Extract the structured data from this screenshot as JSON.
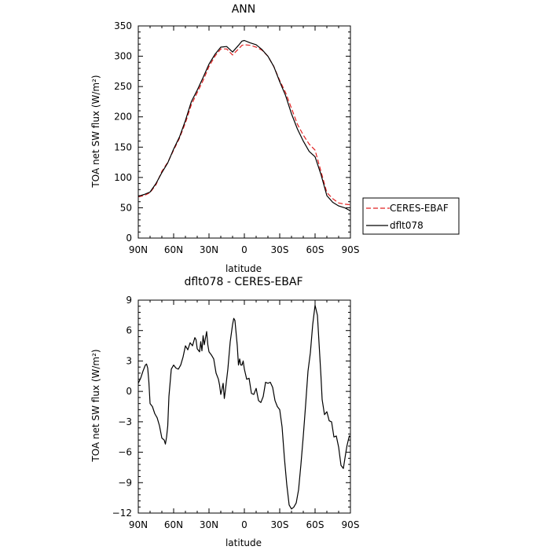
{
  "chart_data": [
    {
      "type": "line",
      "title": "ANN",
      "xlabel": "latitude",
      "ylabel": "TOA net SW flux (W/m²)",
      "xlim": [
        90,
        -90
      ],
      "ylim": [
        0,
        350
      ],
      "yticks": [
        0,
        50,
        100,
        150,
        200,
        250,
        300,
        350
      ],
      "xticks": [
        {
          "value": 90,
          "label": "90N"
        },
        {
          "value": 60,
          "label": "60N"
        },
        {
          "value": 30,
          "label": "30N"
        },
        {
          "value": 0,
          "label": "0"
        },
        {
          "value": -30,
          "label": "30S"
        },
        {
          "value": -60,
          "label": "60S"
        },
        {
          "value": -90,
          "label": "90S"
        }
      ],
      "legend_position": "outside-right",
      "series": [
        {
          "name": "CERES-EBAF",
          "color": "#e02020",
          "style": "dashed",
          "x": [
            90,
            85,
            80,
            75,
            70,
            65,
            60,
            55,
            50,
            45,
            40,
            35,
            30,
            25,
            20,
            15,
            10,
            5,
            2,
            0,
            -5,
            -10,
            -15,
            -20,
            -25,
            -30,
            -35,
            -40,
            -45,
            -50,
            -55,
            -60,
            -65,
            -70,
            -75,
            -80,
            -85,
            -90
          ],
          "y": [
            68,
            70,
            75,
            88,
            110,
            125,
            145,
            165,
            190,
            220,
            240,
            260,
            283,
            300,
            312,
            312,
            302,
            312,
            318,
            319,
            318,
            315,
            310,
            300,
            283,
            260,
            240,
            214,
            188,
            170,
            155,
            145,
            110,
            75,
            65,
            58,
            56,
            55
          ]
        },
        {
          "name": "dflt078",
          "color": "#000000",
          "style": "solid",
          "x": [
            90,
            85,
            80,
            75,
            70,
            65,
            60,
            55,
            50,
            45,
            40,
            35,
            30,
            25,
            20,
            15,
            10,
            5,
            2,
            0,
            -5,
            -10,
            -15,
            -20,
            -25,
            -30,
            -35,
            -40,
            -45,
            -50,
            -55,
            -60,
            -65,
            -70,
            -75,
            -80,
            -85,
            -90
          ],
          "y": [
            69,
            72,
            76,
            90,
            108,
            124,
            147,
            167,
            194,
            225,
            244,
            265,
            287,
            303,
            315,
            316,
            307,
            318,
            325,
            326,
            322,
            319,
            311,
            300,
            283,
            258,
            235,
            205,
            180,
            160,
            143,
            134,
            105,
            70,
            59,
            53,
            50,
            45
          ]
        }
      ]
    },
    {
      "type": "line",
      "title": "dflt078 - CERES-EBAF",
      "xlabel": "latitude",
      "ylabel": "TOA net SW flux (W/m²)",
      "xlim": [
        90,
        -90
      ],
      "ylim": [
        -12,
        9
      ],
      "yticks": [
        -12,
        -9,
        -6,
        -3,
        0,
        3,
        6,
        9
      ],
      "xticks": [
        {
          "value": 90,
          "label": "90N"
        },
        {
          "value": 60,
          "label": "60N"
        },
        {
          "value": 30,
          "label": "30N"
        },
        {
          "value": 0,
          "label": "0"
        },
        {
          "value": -30,
          "label": "30S"
        },
        {
          "value": -60,
          "label": "60S"
        },
        {
          "value": -90,
          "label": "90S"
        }
      ],
      "series": [
        {
          "color": "#000000",
          "style": "solid",
          "x": [
            90,
            88,
            86,
            84,
            83,
            82,
            81,
            80,
            78,
            76,
            74,
            72,
            70,
            68,
            67,
            66,
            65,
            64,
            62,
            60,
            58,
            56,
            54,
            52,
            50,
            48,
            46,
            44,
            42,
            41,
            40,
            38,
            37,
            36,
            35,
            34,
            32,
            31,
            30,
            28,
            26,
            24,
            22,
            21,
            20,
            19,
            18,
            17,
            16,
            14,
            12,
            10,
            9,
            8,
            6,
            5,
            4,
            3,
            2,
            1,
            0,
            -2,
            -4,
            -6,
            -8,
            -10,
            -12,
            -14,
            -16,
            -18,
            -20,
            -22,
            -24,
            -26,
            -28,
            -30,
            -32,
            -34,
            -36,
            -38,
            -40,
            -42,
            -44,
            -46,
            -48,
            -50,
            -52,
            -54,
            -56,
            -58,
            -60,
            -62,
            -63,
            -64,
            -65,
            -66,
            -68,
            -70,
            -72,
            -74,
            -76,
            -78,
            -80,
            -82,
            -84,
            -86,
            -87,
            -88,
            -89,
            -90
          ],
          "y": [
            0.8,
            1.3,
            2.0,
            2.6,
            2.7,
            2.3,
            0.9,
            -1.2,
            -1.5,
            -2.2,
            -2.6,
            -3.4,
            -4.6,
            -4.8,
            -5.2,
            -4.5,
            -3.4,
            -0.5,
            2.2,
            2.6,
            2.3,
            2.2,
            2.6,
            3.4,
            4.5,
            4.1,
            4.8,
            4.5,
            5.3,
            5.1,
            4.2,
            3.9,
            4.9,
            4.0,
            5.5,
            4.6,
            5.9,
            4.6,
            3.9,
            3.6,
            3.2,
            1.8,
            1.2,
            0.6,
            -0.3,
            0.2,
            0.8,
            -0.7,
            0.2,
            2.2,
            4.9,
            6.6,
            7.2,
            7.0,
            4.5,
            2.6,
            3.2,
            2.6,
            2.6,
            3.0,
            2.2,
            1.2,
            1.3,
            -0.2,
            -0.3,
            0.3,
            -0.9,
            -1.1,
            -0.5,
            0.9,
            0.8,
            0.9,
            0.4,
            -0.9,
            -1.5,
            -1.8,
            -3.5,
            -6.6,
            -9.2,
            -11.2,
            -11.6,
            -11.4,
            -11.0,
            -9.7,
            -7.2,
            -4.4,
            -1.3,
            2.0,
            3.8,
            6.6,
            8.5,
            7.5,
            5.5,
            3.5,
            1.5,
            -0.8,
            -2.3,
            -2.0,
            -2.9,
            -3.0,
            -4.5,
            -4.4,
            -5.5,
            -7.3,
            -7.6,
            -6.1,
            -5.4,
            -4.9,
            -4.4,
            -4.5
          ]
        }
      ]
    }
  ],
  "legend": {
    "items": [
      {
        "label": "CERES-EBAF",
        "color": "#e02020",
        "style": "dashed"
      },
      {
        "label": "dflt078",
        "color": "#000000",
        "style": "solid"
      }
    ]
  }
}
